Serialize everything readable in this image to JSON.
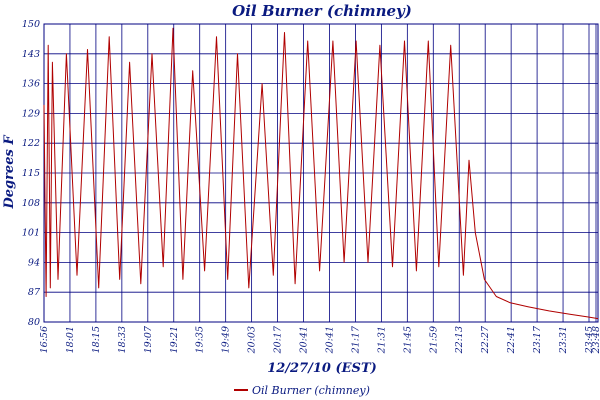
{
  "chart_data": {
    "type": "line",
    "title": "Oil Burner (chimney)",
    "xlabel": "12/27/10 (EST)",
    "ylabel": "Degrees F",
    "ylim": [
      80,
      150
    ],
    "yticks": [
      80,
      87,
      94,
      101,
      108,
      115,
      122,
      129,
      136,
      143,
      150
    ],
    "xlim": [
      "16:56",
      "23:48"
    ],
    "xticks": [
      "16:56",
      "18:01",
      "18:15",
      "18:33",
      "19:07",
      "19:21",
      "19:35",
      "19:49",
      "20:03",
      "20:17",
      "20:41",
      "20:41",
      "21:17",
      "21:31",
      "21:45",
      "21:59",
      "22:13",
      "22:27",
      "22:41",
      "23:17",
      "23:31",
      "23:45",
      "23:48"
    ],
    "grid": true,
    "legend": "bottom-left",
    "series": [
      {
        "name": "Oil Burner (chimney)",
        "color": "#b00000",
        "points": [
          [
            0.0,
            131
          ],
          [
            0.3,
            86
          ],
          [
            0.6,
            145
          ],
          [
            0.9,
            88
          ],
          [
            1.2,
            141
          ],
          [
            2.0,
            90
          ],
          [
            3.2,
            143
          ],
          [
            4.7,
            91
          ],
          [
            6.2,
            144
          ],
          [
            7.8,
            88
          ],
          [
            9.3,
            147
          ],
          [
            10.8,
            90
          ],
          [
            12.2,
            141
          ],
          [
            13.8,
            89
          ],
          [
            15.4,
            143
          ],
          [
            17.0,
            93
          ],
          [
            18.4,
            149
          ],
          [
            19.8,
            90
          ],
          [
            21.2,
            139
          ],
          [
            22.9,
            92
          ],
          [
            24.6,
            147
          ],
          [
            26.2,
            90
          ],
          [
            27.6,
            143
          ],
          [
            29.2,
            88
          ],
          [
            31.1,
            136
          ],
          [
            32.7,
            91
          ],
          [
            34.3,
            148
          ],
          [
            35.8,
            89
          ],
          [
            37.6,
            146
          ],
          [
            39.3,
            92
          ],
          [
            41.2,
            146
          ],
          [
            42.8,
            94
          ],
          [
            44.5,
            146
          ],
          [
            46.2,
            94
          ],
          [
            47.9,
            145
          ],
          [
            49.7,
            93
          ],
          [
            51.4,
            146
          ],
          [
            53.1,
            92
          ],
          [
            54.8,
            146
          ],
          [
            56.3,
            93
          ],
          [
            58.0,
            145
          ],
          [
            59.8,
            91
          ],
          [
            60.6,
            118
          ],
          [
            61.5,
            101
          ],
          [
            62.8,
            90
          ],
          [
            64.5,
            86
          ],
          [
            66.5,
            84.5
          ],
          [
            69.0,
            83.6
          ],
          [
            72.0,
            82.6
          ],
          [
            75.0,
            81.8
          ],
          [
            77.5,
            81.2
          ],
          [
            79.0,
            80.8
          ]
        ]
      }
    ]
  }
}
